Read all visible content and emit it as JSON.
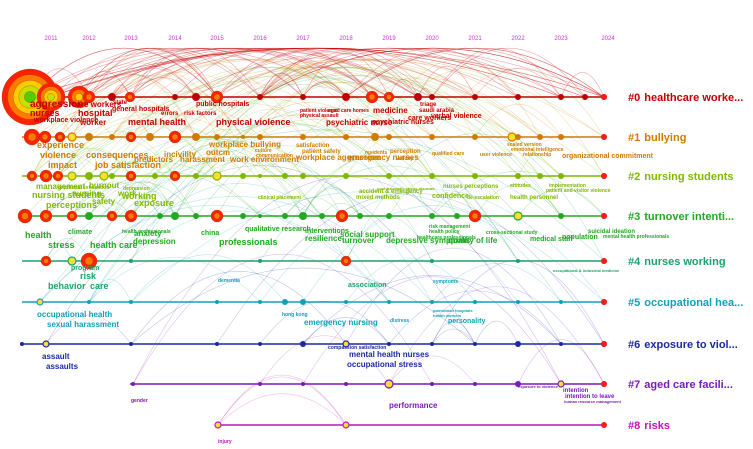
{
  "years": [
    "2011",
    "2012",
    "2013",
    "2014",
    "2015",
    "2016",
    "2017",
    "2018",
    "2019",
    "2020",
    "2021",
    "2022",
    "2023",
    "2024"
  ],
  "colors": {
    "year": "#cc33cc",
    "c0": "#c00000",
    "c1": "#d07a00",
    "c2": "#7fb800",
    "c3": "#22a822",
    "c4": "#1aa36a",
    "c5": "#10a0b8",
    "c6": "#1a2aa0",
    "c7": "#7a1ab8",
    "c8": "#c010c0"
  },
  "clusters": [
    {
      "id": "#0",
      "label": "healthcare worke...",
      "color": "#c00000",
      "keywords": [
        "aggression",
        "nurses",
        "workplace violence",
        "care workers",
        "hospital",
        "worker",
        "general hospitals",
        "mental health",
        "state",
        "public hospitals",
        "errors",
        "physical violence",
        "risk factors",
        "patient violence",
        "physical assault",
        "aged care homes",
        "psychiatric nurse",
        "psychiatric nurses",
        "medicine",
        "care workers",
        "triage",
        "saudi arabia",
        "verbal violence"
      ]
    },
    {
      "id": "#1",
      "label": "bullying",
      "color": "#d07a00",
      "keywords": [
        "experience",
        "violence",
        "consequences",
        "impact",
        "job satisfaction",
        "predictors",
        "incivility",
        "harassment",
        "workplace bullying",
        "outcm",
        "work environment",
        "culture",
        "communication",
        "satisfaction",
        "patient safety",
        "workplace aggression",
        "emergency nurses",
        "residents",
        "validity",
        "perception",
        "qualified care",
        "user violence",
        "scaled version",
        "emotional intelligence",
        "organizational commitment",
        "relationship"
      ]
    },
    {
      "id": "#2",
      "label": "nursing students",
      "color": "#7fb800",
      "keywords": [
        "management",
        "nursing students",
        "perceptions",
        "emotional exhaustion",
        "burnout",
        "nursing",
        "depression",
        "safety",
        "work",
        "working",
        "exposure",
        "clinical placement",
        "nurses perceptions",
        "accident & emergency",
        "mixed methods",
        "confidence",
        "de-escalation",
        "health personnel",
        "post traumatic stress disorder",
        "attitudes",
        "implementation",
        "patient and visitor violence"
      ]
    },
    {
      "id": "#3",
      "label": "turnover intenti...",
      "color": "#22a822",
      "keywords": [
        "health",
        "stress",
        "health care",
        "anxiety",
        "depression",
        "health professionals",
        "climate",
        "china",
        "professionals",
        "qualitative research",
        "interventions",
        "resilience",
        "social support",
        "turnover",
        "depressive symptoms",
        "healthcare professionals",
        "quality of life",
        "risk management",
        "health policy",
        "cross-sectional study",
        "medical staff",
        "population",
        "suicidal ideation",
        "mental health professionals"
      ]
    },
    {
      "id": "#4",
      "label": "nurses working",
      "color": "#1aa36a",
      "keywords": [
        "program",
        "risk",
        "behavior",
        "care",
        "association",
        "occupational & industrial medicine"
      ]
    },
    {
      "id": "#5",
      "label": "occupational hea...",
      "color": "#10a0b8",
      "keywords": [
        "occupational health",
        "sexual harassment",
        "dementia",
        "symptoms",
        "hong kong",
        "emergency nursing",
        "distress",
        "palestinian hospitals",
        "health workers",
        "personality"
      ]
    },
    {
      "id": "#6",
      "label": "exposure to viol...",
      "color": "#1a2aa0",
      "keywords": [
        "assault",
        "assaults",
        "compassion satisfaction",
        "mental health nurses",
        "occupational stress"
      ]
    },
    {
      "id": "#7",
      "label": "aged care facili...",
      "color": "#7a1ab8",
      "keywords": [
        "gender",
        "performance",
        "exposure to violence",
        "intention",
        "intention to leave",
        "human resource management"
      ]
    },
    {
      "id": "#8",
      "label": "risks",
      "color": "#c010c0",
      "keywords": [
        "injury"
      ]
    }
  ]
}
